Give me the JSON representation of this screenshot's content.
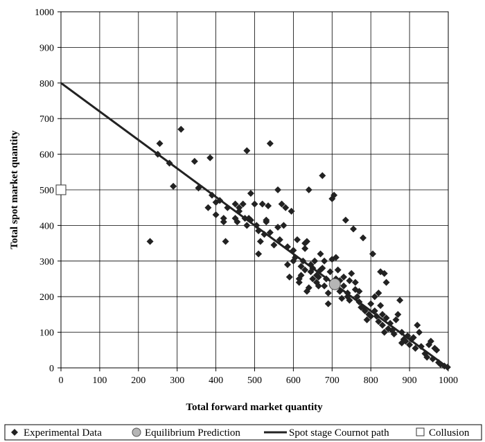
{
  "chart_data": {
    "type": "scatter",
    "title": "",
    "xlabel": "Total forward market quantity",
    "ylabel": "Total spot market quantity",
    "xlim": [
      0,
      1000
    ],
    "ylim": [
      0,
      1000
    ],
    "x_ticks": [
      "0",
      "100",
      "200",
      "300",
      "400",
      "500",
      "600",
      "700",
      "800",
      "900",
      "1000"
    ],
    "y_ticks": [
      "0",
      "100",
      "200",
      "300",
      "400",
      "500",
      "600",
      "700",
      "800",
      "900",
      "1000"
    ],
    "grid": true,
    "legend_position": "bottom",
    "legend": [
      {
        "label": "Experimental Data",
        "marker": "diamond"
      },
      {
        "label": "Equilibrium Prediction",
        "marker": "circle"
      },
      {
        "label": "Spot stage Cournot path",
        "marker": "line"
      },
      {
        "label": "Collusion",
        "marker": "square"
      }
    ],
    "colors": {
      "experimental": "#222222",
      "equilibrium_fill": "#b5b5b5",
      "cournot_line": "#222222",
      "collusion_fill": "#ffffff",
      "grid": "#000000"
    },
    "cournot_path": [
      [
        0,
        800
      ],
      [
        1000,
        0
      ]
    ],
    "equilibrium_point": [
      707,
      235
    ],
    "collusion_point": [
      0,
      500
    ],
    "experimental_data": [
      [
        230,
        355
      ],
      [
        250,
        600
      ],
      [
        255,
        630
      ],
      [
        280,
        575
      ],
      [
        290,
        510
      ],
      [
        310,
        670
      ],
      [
        345,
        580
      ],
      [
        355,
        505
      ],
      [
        380,
        450
      ],
      [
        385,
        590
      ],
      [
        390,
        485
      ],
      [
        400,
        465
      ],
      [
        400,
        430
      ],
      [
        410,
        470
      ],
      [
        420,
        420
      ],
      [
        420,
        410
      ],
      [
        425,
        355
      ],
      [
        430,
        450
      ],
      [
        450,
        460
      ],
      [
        450,
        420
      ],
      [
        455,
        410
      ],
      [
        460,
        440
      ],
      [
        460,
        450
      ],
      [
        470,
        460
      ],
      [
        475,
        420
      ],
      [
        480,
        400
      ],
      [
        480,
        610
      ],
      [
        485,
        420
      ],
      [
        490,
        490
      ],
      [
        490,
        415
      ],
      [
        500,
        460
      ],
      [
        505,
        400
      ],
      [
        510,
        320
      ],
      [
        510,
        385
      ],
      [
        515,
        355
      ],
      [
        520,
        460
      ],
      [
        525,
        375
      ],
      [
        530,
        410
      ],
      [
        530,
        415
      ],
      [
        535,
        455
      ],
      [
        540,
        630
      ],
      [
        540,
        380
      ],
      [
        550,
        345
      ],
      [
        560,
        500
      ],
      [
        560,
        395
      ],
      [
        565,
        360
      ],
      [
        570,
        460
      ],
      [
        575,
        400
      ],
      [
        580,
        450
      ],
      [
        585,
        340
      ],
      [
        585,
        290
      ],
      [
        590,
        255
      ],
      [
        595,
        440
      ],
      [
        600,
        330
      ],
      [
        600,
        300
      ],
      [
        605,
        310
      ],
      [
        610,
        360
      ],
      [
        615,
        250
      ],
      [
        615,
        240
      ],
      [
        620,
        285
      ],
      [
        620,
        260
      ],
      [
        625,
        300
      ],
      [
        630,
        275
      ],
      [
        630,
        335
      ],
      [
        630,
        350
      ],
      [
        635,
        355
      ],
      [
        635,
        215
      ],
      [
        640,
        225
      ],
      [
        640,
        500
      ],
      [
        645,
        270
      ],
      [
        645,
        290
      ],
      [
        650,
        280
      ],
      [
        650,
        250
      ],
      [
        655,
        300
      ],
      [
        660,
        240
      ],
      [
        660,
        260
      ],
      [
        665,
        255
      ],
      [
        665,
        230
      ],
      [
        670,
        320
      ],
      [
        670,
        275
      ],
      [
        675,
        280
      ],
      [
        675,
        540
      ],
      [
        680,
        230
      ],
      [
        680,
        300
      ],
      [
        685,
        250
      ],
      [
        690,
        180
      ],
      [
        690,
        210
      ],
      [
        695,
        270
      ],
      [
        700,
        305
      ],
      [
        700,
        475
      ],
      [
        705,
        485
      ],
      [
        710,
        310
      ],
      [
        710,
        250
      ],
      [
        715,
        275
      ],
      [
        720,
        245
      ],
      [
        720,
        215
      ],
      [
        725,
        195
      ],
      [
        730,
        255
      ],
      [
        730,
        230
      ],
      [
        735,
        415
      ],
      [
        740,
        200
      ],
      [
        740,
        210
      ],
      [
        745,
        245
      ],
      [
        745,
        190
      ],
      [
        750,
        265
      ],
      [
        755,
        390
      ],
      [
        760,
        220
      ],
      [
        760,
        240
      ],
      [
        765,
        200
      ],
      [
        770,
        185
      ],
      [
        770,
        215
      ],
      [
        775,
        170
      ],
      [
        780,
        365
      ],
      [
        780,
        170
      ],
      [
        785,
        160
      ],
      [
        790,
        135
      ],
      [
        795,
        150
      ],
      [
        800,
        180
      ],
      [
        800,
        145
      ],
      [
        805,
        320
      ],
      [
        810,
        200
      ],
      [
        810,
        160
      ],
      [
        815,
        145
      ],
      [
        820,
        130
      ],
      [
        820,
        210
      ],
      [
        825,
        270
      ],
      [
        825,
        175
      ],
      [
        830,
        150
      ],
      [
        830,
        120
      ],
      [
        835,
        265
      ],
      [
        835,
        100
      ],
      [
        840,
        240
      ],
      [
        840,
        140
      ],
      [
        845,
        110
      ],
      [
        850,
        125
      ],
      [
        855,
        105
      ],
      [
        860,
        95
      ],
      [
        865,
        135
      ],
      [
        870,
        150
      ],
      [
        875,
        190
      ],
      [
        880,
        70
      ],
      [
        880,
        100
      ],
      [
        885,
        80
      ],
      [
        890,
        75
      ],
      [
        895,
        90
      ],
      [
        900,
        65
      ],
      [
        905,
        80
      ],
      [
        910,
        85
      ],
      [
        915,
        55
      ],
      [
        920,
        120
      ],
      [
        925,
        100
      ],
      [
        930,
        60
      ],
      [
        940,
        40
      ],
      [
        945,
        30
      ],
      [
        950,
        65
      ],
      [
        955,
        75
      ],
      [
        960,
        25
      ],
      [
        965,
        55
      ],
      [
        970,
        50
      ],
      [
        975,
        15
      ],
      [
        980,
        10
      ],
      [
        990,
        5
      ],
      [
        998,
        2
      ]
    ]
  }
}
